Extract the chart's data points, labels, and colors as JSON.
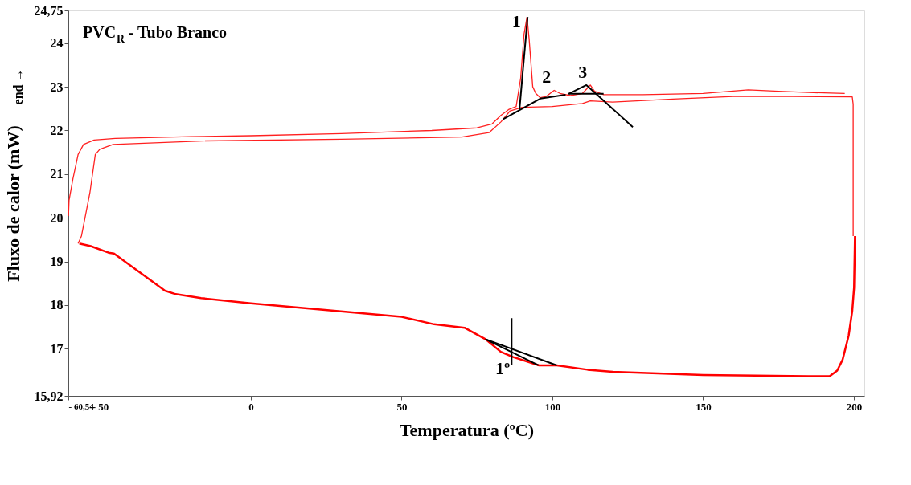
{
  "chart_data": {
    "type": "line",
    "title": "PVC$_{R}$ - Tubo Branco",
    "xlabel": "Temperatura (ºC)",
    "ylabel": "Fluxo de calor (mW)",
    "xlim": [
      -60.54,
      203.5
    ],
    "ylim": [
      15.92,
      24.75
    ],
    "xticks": [
      {
        "value": -60.54,
        "label": "- 60,54"
      },
      {
        "value": -50,
        "label": "- 50"
      },
      0,
      50,
      100,
      150,
      200
    ],
    "yticks": [
      {
        "value": 15.92,
        "label": "15,92"
      },
      17,
      18,
      19,
      20,
      21,
      22,
      23,
      24,
      {
        "value": 24.75,
        "label": "24,75"
      }
    ],
    "grid": false,
    "line_style": "solid",
    "marker": "none",
    "annotations": [
      {
        "text": "1",
        "x": 90.6,
        "y": 24.2
      },
      {
        "text": "2",
        "x": 100.6,
        "y": 22.92
      },
      {
        "text": "3",
        "x": 112.6,
        "y": 23.04
      },
      {
        "text": "1º",
        "x": 87,
        "y": 16.81
      },
      "end →"
    ],
    "series": [
      {
        "color": "#ff2020",
        "x": [
          -60.5,
          -60.3,
          -59,
          -57.3,
          -55.5,
          -52,
          -45,
          -20,
          0,
          30,
          60,
          75,
          80,
          83,
          85.5,
          88,
          89.5,
          90.6,
          91.6,
          92.3,
          93.5,
          94.5,
          96,
          98,
          100.6,
          102.5,
          106,
          110,
          112.6,
          114,
          117,
          130,
          150,
          165,
          175,
          185,
          197
        ],
        "values": [
          20.04,
          20.4,
          20.9,
          21.45,
          21.68,
          21.78,
          21.82,
          21.86,
          21.88,
          21.93,
          22.0,
          22.06,
          22.15,
          22.35,
          22.48,
          22.55,
          23.2,
          24.2,
          24.6,
          24.1,
          23.0,
          22.85,
          22.75,
          22.78,
          22.92,
          22.85,
          22.8,
          22.85,
          23.04,
          22.9,
          22.82,
          22.82,
          22.85,
          22.93,
          22.9,
          22.87,
          22.85
        ]
      },
      {
        "color": "#ff2020",
        "x": [
          -57.3,
          -56.2,
          -53.4,
          -51.6,
          -50.1,
          -45.7,
          -16.5,
          30,
          70,
          79,
          83,
          86,
          90,
          100,
          110,
          112.6,
          120,
          140,
          160,
          180,
          199.5,
          199.8,
          199.8
        ],
        "values": [
          19.41,
          19.58,
          20.57,
          21.45,
          21.57,
          21.68,
          21.76,
          21.8,
          21.85,
          21.95,
          22.2,
          22.45,
          22.53,
          22.55,
          22.62,
          22.68,
          22.65,
          22.72,
          22.78,
          22.78,
          22.77,
          22.6,
          19.58
        ]
      },
      {
        "color": "#ff0000",
        "x": [
          200.4,
          200.1,
          199.5,
          198.3,
          196.3,
          194.5,
          192,
          185,
          150,
          120,
          111.7,
          101.5,
          95.6,
          87,
          82.9,
          77.8,
          70.9,
          60.8,
          50,
          0,
          -16.5,
          -24.9,
          -28.5,
          -45.4,
          -47.2,
          -53.1,
          -56.9
        ],
        "values": [
          19.58,
          18.4,
          17.87,
          17.3,
          16.75,
          16.5,
          16.37,
          16.37,
          16.4,
          16.47,
          16.52,
          16.62,
          16.62,
          16.81,
          16.93,
          17.22,
          17.48,
          17.56,
          17.73,
          18.04,
          18.16,
          18.25,
          18.33,
          19.18,
          19.2,
          19.35,
          19.41
        ]
      },
      {
        "color": "#000000",
        "x": [
          83.7,
          96,
          104.4
        ],
        "values": [
          22.26,
          22.73,
          22.82
        ]
      },
      {
        "color": "#000000",
        "x": [
          89.1,
          91.8
        ],
        "values": [
          22.48,
          24.6
        ]
      },
      {
        "color": "#000000",
        "x": [
          105.4,
          117
        ],
        "values": [
          22.84,
          22.84
        ]
      },
      {
        "color": "#000000",
        "x": [
          105.4,
          111.3,
          126.7
        ],
        "values": [
          22.84,
          23.04,
          22.08
        ]
      },
      {
        "color": "#000000",
        "x": [
          77.8,
          101.5
        ],
        "values": [
          17.22,
          16.62
        ]
      },
      {
        "color": "#000000",
        "x": [
          77.8,
          95.4
        ],
        "values": [
          17.22,
          16.62
        ]
      },
      {
        "color": "#000000",
        "x": [
          86.5,
          86.5
        ],
        "values": [
          17.7,
          16.62
        ]
      }
    ]
  }
}
